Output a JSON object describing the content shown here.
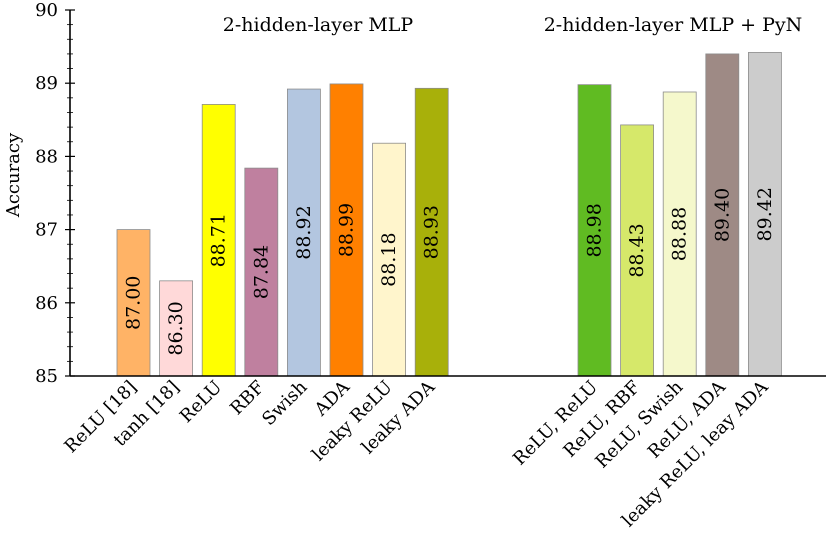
{
  "chart_data": {
    "type": "bar",
    "title": "",
    "xlabel": "",
    "ylabel": "Accuracy",
    "ylim": [
      85,
      90
    ],
    "yticks": [
      85,
      86,
      87,
      88,
      89,
      90
    ],
    "grid": false,
    "legend": "none",
    "groups": [
      {
        "title": "2-hidden-layer MLP",
        "bars": [
          {
            "category": "ReLU [18]",
            "value": 87.0,
            "label": "87.00",
            "color": "#ffb366"
          },
          {
            "category": "tanh [18]",
            "value": 86.3,
            "label": "86.30",
            "color": "#ffd9d9"
          },
          {
            "category": "ReLU",
            "value": 88.71,
            "label": "88.71",
            "color": "#ffff00"
          },
          {
            "category": "RBF",
            "value": 87.84,
            "label": "87.84",
            "color": "#bf809f"
          },
          {
            "category": "Swish",
            "value": 88.92,
            "label": "88.92",
            "color": "#b3c6e0"
          },
          {
            "category": "ADA",
            "value": 88.99,
            "label": "88.99",
            "color": "#ff8000"
          },
          {
            "category": "leaky ReLU",
            "value": 88.18,
            "label": "88.18",
            "color": "#fff5cc"
          },
          {
            "category": "leaky ADA",
            "value": 88.93,
            "label": "88.93",
            "color": "#a8b00a"
          }
        ]
      },
      {
        "title": "2-hidden-layer MLP + PyN",
        "bars": [
          {
            "category": "ReLU, ReLU",
            "value": 88.98,
            "label": "88.98",
            "color": "#60bb22"
          },
          {
            "category": "ReLU, RBF",
            "value": 88.43,
            "label": "88.43",
            "color": "#d6e86a"
          },
          {
            "category": "ReLU, Swish",
            "value": 88.88,
            "label": "88.88",
            "color": "#f5f8cc"
          },
          {
            "category": "ReLU, ADA",
            "value": 89.4,
            "label": "89.40",
            "color": "#9e8a85"
          },
          {
            "category": "leaky ReLU, leay ADA",
            "value": 89.42,
            "label": "89.42",
            "color": "#cccccc"
          }
        ]
      }
    ]
  }
}
